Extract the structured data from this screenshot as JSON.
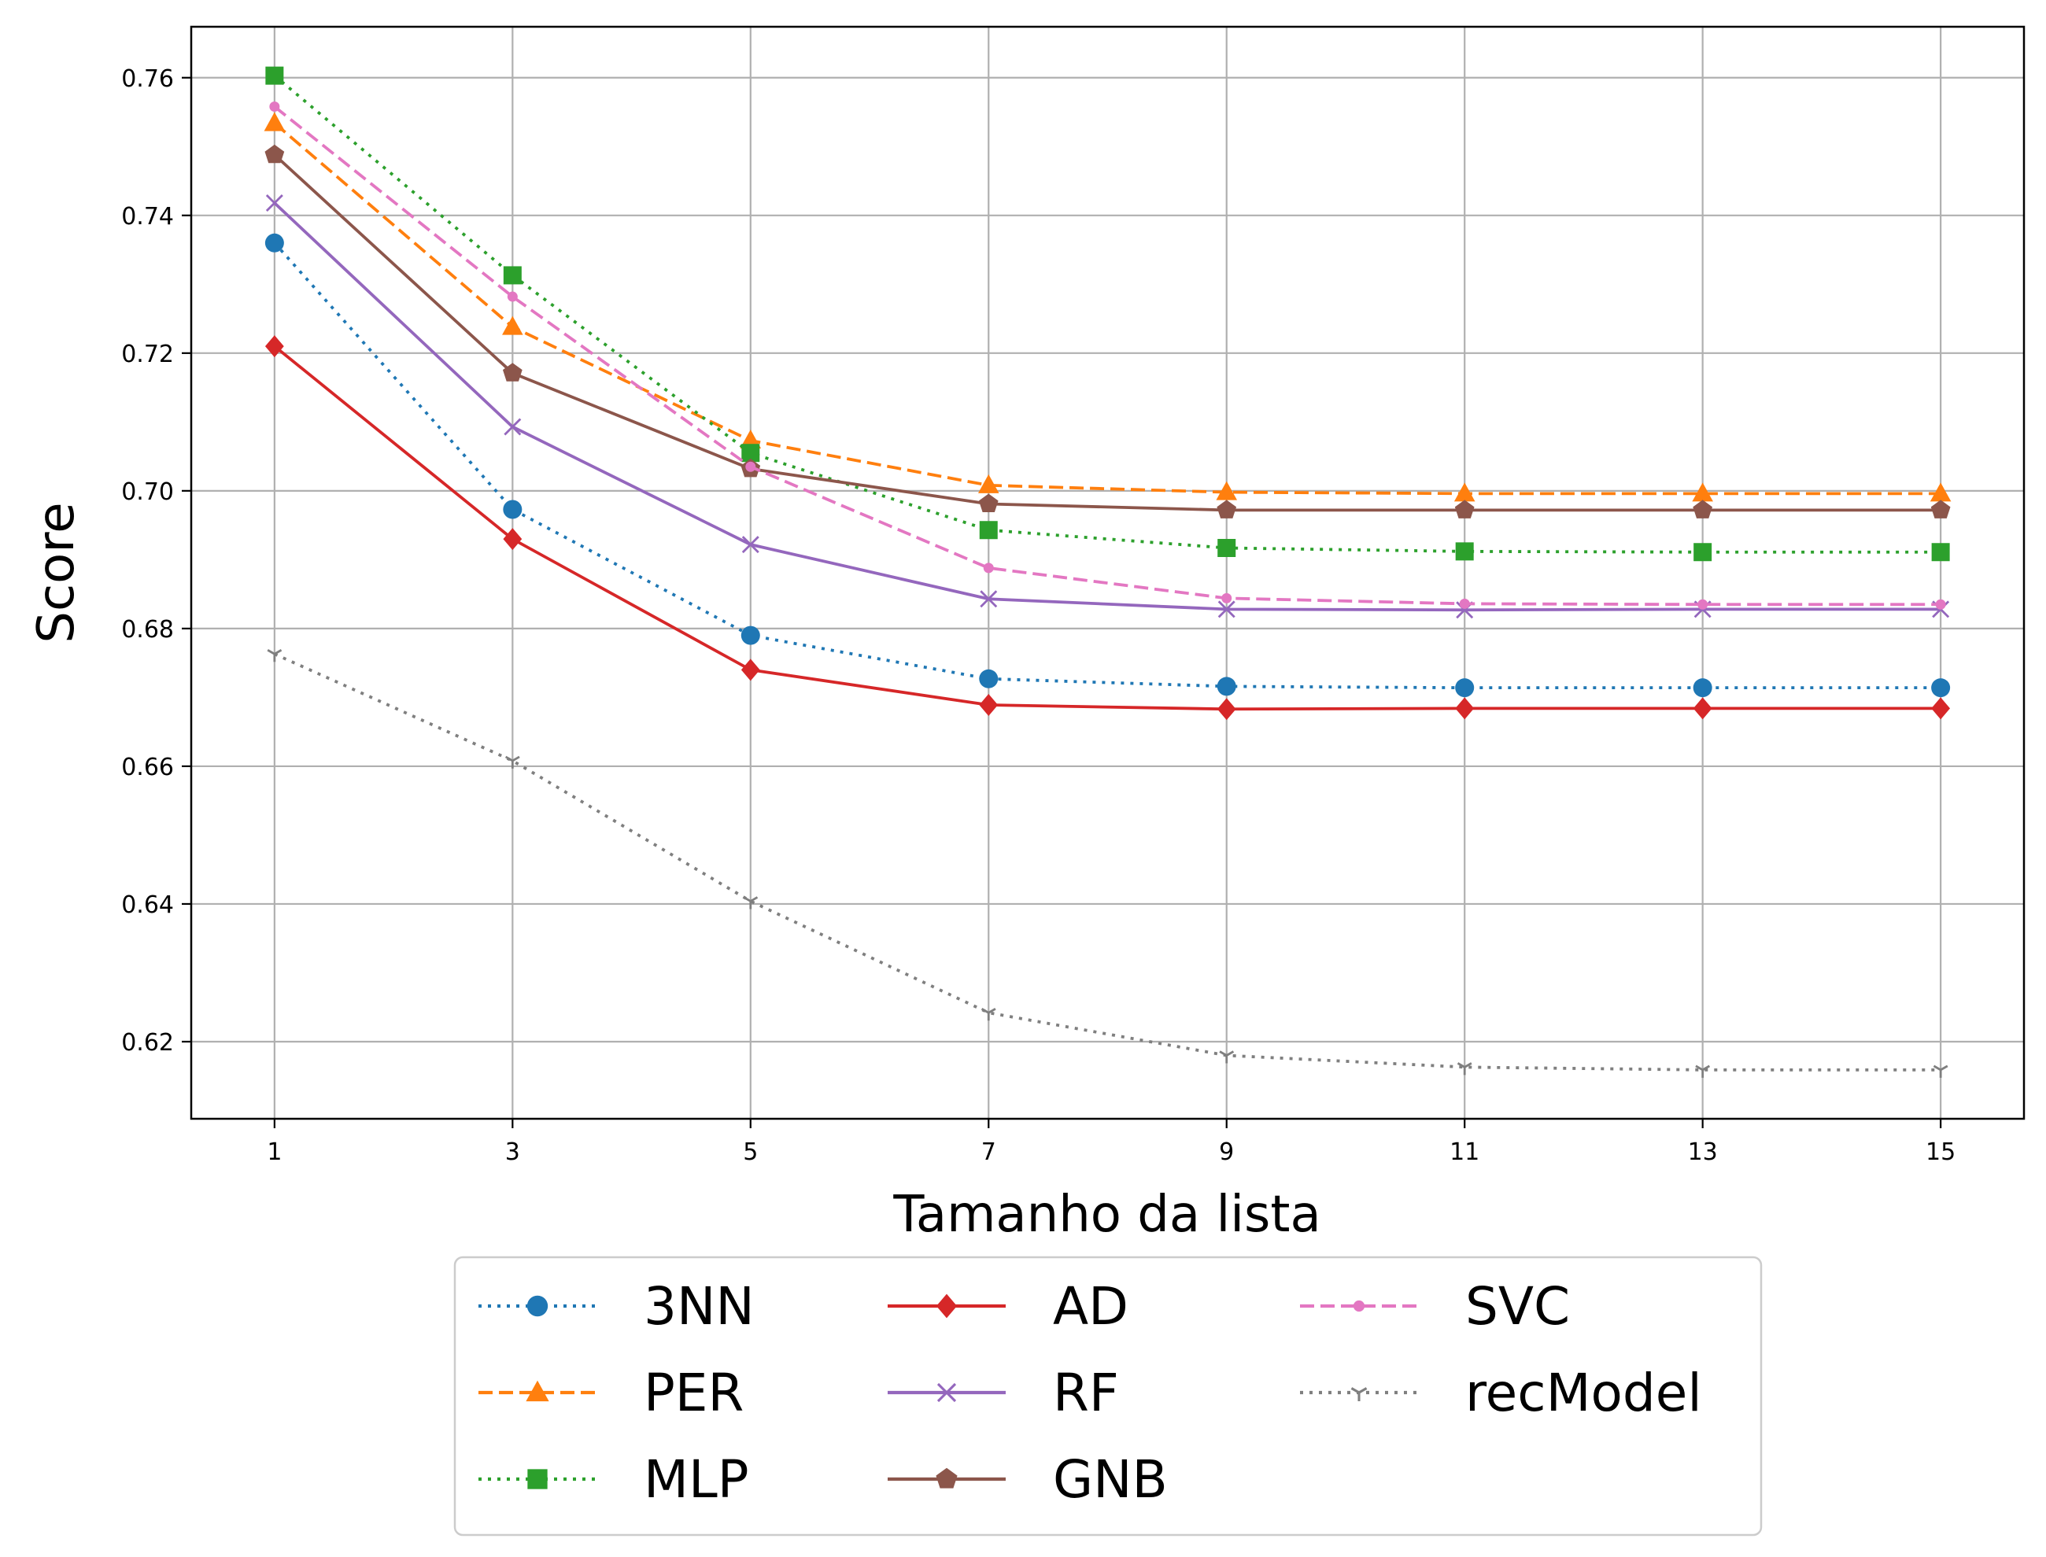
{
  "chart_data": {
    "type": "line",
    "title": "",
    "xlabel": "Tamanho da lista",
    "ylabel": "Score",
    "x": [
      1,
      3,
      5,
      7,
      9,
      11,
      13,
      15
    ],
    "x_ticks": [
      "1",
      "3",
      "5",
      "7",
      "9",
      "11",
      "13",
      "15"
    ],
    "y_ticks": [
      "0.62",
      "0.64",
      "0.66",
      "0.68",
      "0.70",
      "0.72",
      "0.74",
      "0.76"
    ],
    "xlim": [
      0.3,
      15.7
    ],
    "ylim": [
      0.6088,
      0.7674
    ],
    "grid": true,
    "legend_position": "below",
    "series": [
      {
        "name": "3NN",
        "color": "#1f77b4",
        "dash": "dotted",
        "marker": "circle",
        "values": [
          0.736,
          0.6973,
          0.679,
          0.6727,
          0.6716,
          0.6714,
          0.6714,
          0.6714
        ]
      },
      {
        "name": "PER",
        "color": "#ff7f0e",
        "dash": "dashed",
        "marker": "triangle",
        "values": [
          0.7534,
          0.7238,
          0.7073,
          0.7008,
          0.6998,
          0.6996,
          0.6996,
          0.6996
        ]
      },
      {
        "name": "MLP",
        "color": "#2ca02c",
        "dash": "dotted",
        "marker": "square",
        "values": [
          0.7603,
          0.7313,
          0.7055,
          0.6943,
          0.6917,
          0.6912,
          0.6911,
          0.6911
        ]
      },
      {
        "name": "AD",
        "color": "#d62728",
        "dash": "solid",
        "marker": "diamond",
        "values": [
          0.721,
          0.693,
          0.674,
          0.6689,
          0.6683,
          0.6684,
          0.6684,
          0.6684
        ]
      },
      {
        "name": "RF",
        "color": "#9467bd",
        "dash": "solid",
        "marker": "x",
        "values": [
          0.7418,
          0.7093,
          0.6922,
          0.6843,
          0.6828,
          0.6827,
          0.6828,
          0.6828
        ]
      },
      {
        "name": "GNB",
        "color": "#8c564b",
        "dash": "solid",
        "marker": "pentagon",
        "values": [
          0.7488,
          0.7171,
          0.7032,
          0.6981,
          0.6972,
          0.6972,
          0.6972,
          0.6972
        ]
      },
      {
        "name": "SVC",
        "color": "#e377c2",
        "dash": "dashed",
        "marker": "point",
        "values": [
          0.7558,
          0.7282,
          0.7035,
          0.6888,
          0.6844,
          0.6836,
          0.6835,
          0.6835
        ]
      },
      {
        "name": "recModel",
        "color": "#7f7f7f",
        "dash": "dotted",
        "marker": "tri_down",
        "values": [
          0.6763,
          0.6608,
          0.6404,
          0.6242,
          0.618,
          0.6163,
          0.6159,
          0.6159
        ]
      }
    ]
  }
}
